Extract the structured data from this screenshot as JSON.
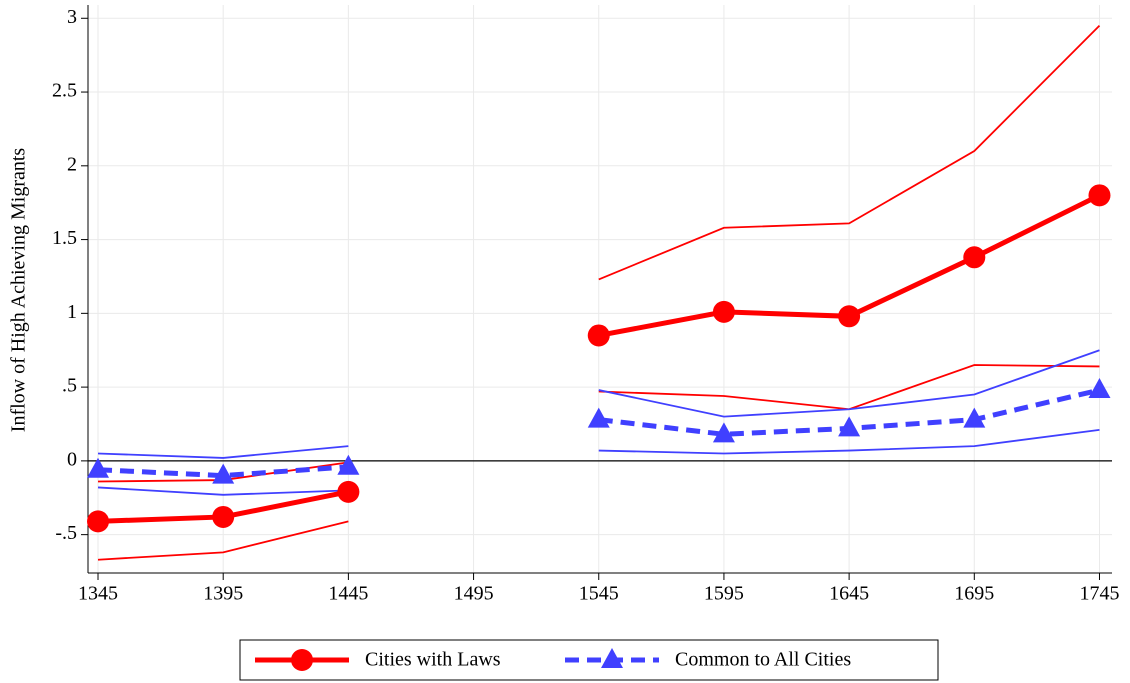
{
  "chart_data": {
    "type": "line",
    "y_label": "Inflow of High Achieving Migrants",
    "x": [
      1345,
      1395,
      1445,
      1495,
      1545,
      1595,
      1645,
      1695,
      1745
    ],
    "xlim": [
      1341,
      1750
    ],
    "xticks": [
      1345,
      1395,
      1445,
      1495,
      1545,
      1595,
      1645,
      1695,
      1745
    ],
    "ylim": [
      -0.76,
      3.09
    ],
    "yticks": [
      {
        "value": -0.5,
        "label": "-.5"
      },
      0,
      {
        "value": 0.5,
        "label": ".5"
      },
      1,
      1.5,
      2,
      2.5,
      3
    ],
    "reference_line": 0,
    "grid": true,
    "legend": "bottom",
    "series": [
      {
        "name": "Cities with Laws",
        "color": "#ff0000",
        "marker": "circle",
        "dash": false,
        "values": [
          -0.41,
          -0.38,
          -0.21,
          null,
          0.85,
          1.01,
          0.98,
          1.38,
          1.8
        ],
        "upper": [
          -0.14,
          -0.13,
          -0.01,
          null,
          1.23,
          1.58,
          1.61,
          2.1,
          2.95
        ],
        "lower": [
          -0.67,
          -0.62,
          -0.41,
          null,
          0.47,
          0.44,
          0.35,
          0.65,
          0.64
        ]
      },
      {
        "name": "Common to All Cities",
        "color": "#4040ff",
        "marker": "triangle",
        "dash": true,
        "values": [
          -0.06,
          -0.1,
          -0.04,
          null,
          0.28,
          0.18,
          0.22,
          0.28,
          0.48
        ],
        "upper": [
          0.05,
          0.02,
          0.1,
          null,
          0.48,
          0.3,
          0.35,
          0.45,
          0.75
        ],
        "lower": [
          -0.18,
          -0.23,
          -0.2,
          null,
          0.07,
          0.05,
          0.07,
          0.1,
          0.21
        ]
      }
    ]
  }
}
